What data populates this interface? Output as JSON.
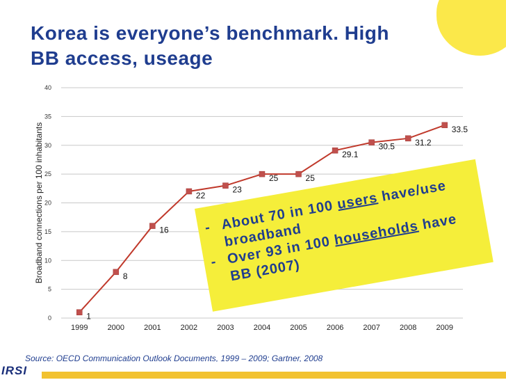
{
  "title": {
    "line1": "Korea is everyone’s benchmark.  High",
    "line2": "BB access, useage"
  },
  "chart_data": {
    "type": "line",
    "x": [
      "1999",
      "2000",
      "2001",
      "2002",
      "2003",
      "2004",
      "2005",
      "2006",
      "2007",
      "2008",
      "2009"
    ],
    "values": [
      1,
      8,
      16,
      22,
      23,
      25,
      25,
      29.1,
      30.5,
      31.2,
      33.5
    ],
    "data_labels": [
      "1",
      "8",
      "16",
      "22",
      "23",
      "25",
      "25",
      "29.1",
      "30.5",
      "31.2",
      "33.5"
    ],
    "ylabel": "Broadband connections per 100 inhabitants",
    "ylim": [
      0,
      40
    ],
    "yticks": [
      "0",
      "5",
      "10",
      "15",
      "20",
      "25",
      "30",
      "35",
      "40"
    ],
    "ytick_values": [
      0,
      5,
      10,
      15,
      20,
      25,
      30,
      35,
      40
    ],
    "grid": true,
    "line_color": "#c0392b",
    "marker_color": "#c0504d"
  },
  "callout": {
    "line1_dash": "-",
    "line1_pre": "About 70 in 100 ",
    "line1_ul": "users",
    "line1_post": " have/use",
    "line2": "broadband",
    "line3_dash": "-",
    "line3_pre": "Over 93 in 100 ",
    "line3_ul": "households",
    "line3_post": " have",
    "line4": "BB (2007)"
  },
  "source": "Source: OECD Communication Outlook Documents, 1999 – 2009;  Gartner, 2008",
  "logo": "IRSI",
  "colors": {
    "title": "#1f3d8f",
    "highlight": "#f5ee3a",
    "gridline": "#c8c8c8"
  }
}
